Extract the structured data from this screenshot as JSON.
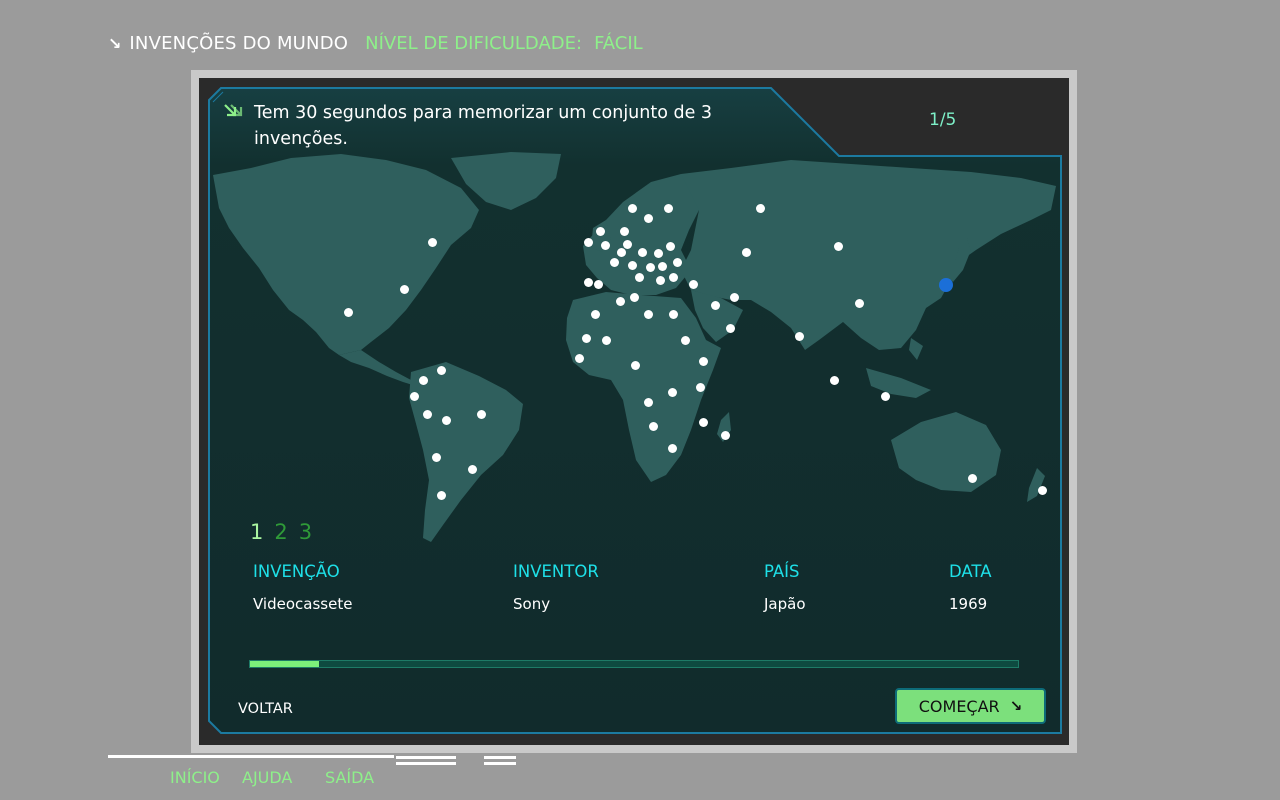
{
  "header": {
    "arrow_icon": "↘",
    "title": "INVENÇÕES DO MUNDO",
    "difficulty_label": "NÍVEL DE DIFICULDADE:",
    "difficulty_value": "FÁCIL"
  },
  "panel": {
    "instruction": "Tem 30 segundos para memorizar um conjunto de 3 invenções.",
    "instruction_icon": "double-arrow-icon",
    "counter": "1/5"
  },
  "map": {
    "active_pin": "Japão",
    "pin_count": 72
  },
  "pages": [
    "1",
    "2",
    "3"
  ],
  "current_page": "1",
  "table": {
    "headers": {
      "invention": "INVENÇÃO",
      "inventor": "INVENTOR",
      "country": "PAÍS",
      "date": "DATA"
    },
    "row": {
      "invention": "Videocassete",
      "inventor": "Sony",
      "country": "Japão",
      "date": "1969"
    }
  },
  "timer_progress_fraction": 0.09,
  "buttons": {
    "back": "VOLTAR",
    "start": "COMEÇAR",
    "start_icon": "↘"
  },
  "footer_nav": {
    "home": "INÍCIO",
    "help": "AJUDA",
    "exit": "SAÍDA"
  },
  "colors": {
    "accent_green": "#8ef08a",
    "accent_cyan": "#1ee0e8",
    "panel_bg": "#132f31",
    "land": "#2f5f5d",
    "active_pin": "#1b6fd8"
  }
}
